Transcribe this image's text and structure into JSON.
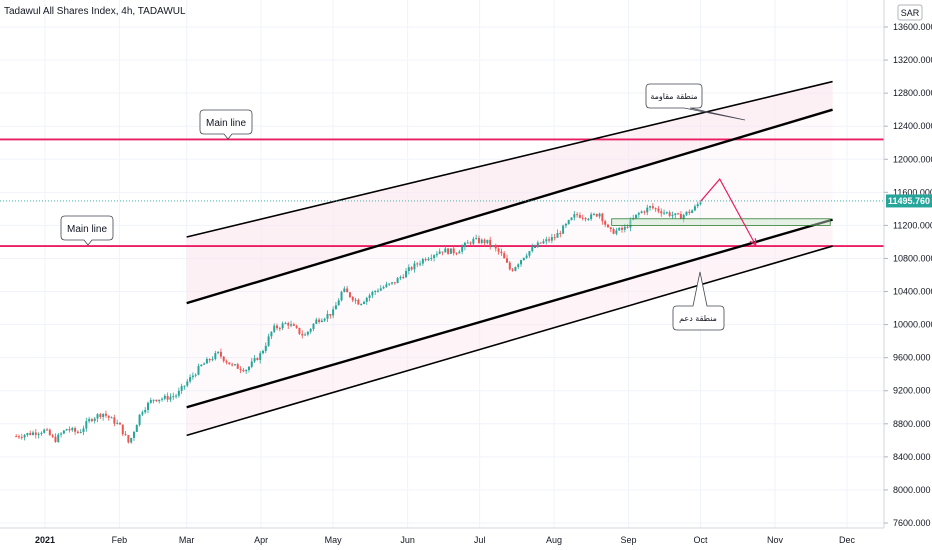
{
  "header": {
    "title": "Tadawul All Shares Index, 4h, TADAWUL",
    "currency": "SAR"
  },
  "price_label": {
    "text": "11495.760",
    "value": 11495.76,
    "color": "#26a69a"
  },
  "annotations": {
    "main_line_upper": "Main line",
    "main_line_lower": "Main line",
    "resistance_zone": "منطقة مقاومة",
    "support_zone": "منطقة دعم"
  },
  "colors": {
    "main_line": "#e91e63",
    "channel": "#000000",
    "channel_fill": "#fce4ec",
    "candle_up": "#26a69a",
    "candle_down": "#ef5350",
    "box": "#4caf50",
    "projection": "#e91e63"
  },
  "chart_data": {
    "type": "candlestick",
    "title": "Tadawul All Shares Index, 4h, TADAWUL",
    "y_unit": "SAR",
    "ylim": [
      7550,
      13900
    ],
    "y_ticks": [
      "13600.000",
      "13200.000",
      "12800.000",
      "12400.000",
      "12000.000",
      "11600.000",
      "11200.000",
      "10800.000",
      "10400.000",
      "10000.000",
      "9600.000",
      "9200.000",
      "8800.000",
      "8400.000",
      "8000.000",
      "7600.000"
    ],
    "x_ticks": [
      "2021",
      "Feb",
      "Mar",
      "Apr",
      "May",
      "Jun",
      "Jul",
      "Aug",
      "Sep",
      "Oct",
      "Nov",
      "Dec"
    ],
    "grid": true,
    "last_price": 11495.76,
    "main_lines": [
      12240,
      10950
    ],
    "price_path": [
      [
        "2020-12-20",
        8650
      ],
      [
        "2021-01-01",
        8720
      ],
      [
        "2021-01-05",
        8600
      ],
      [
        "2021-01-10",
        8740
      ],
      [
        "2021-01-15",
        8690
      ],
      [
        "2021-01-20",
        8860
      ],
      [
        "2021-01-25",
        8930
      ],
      [
        "2021-02-01",
        8780
      ],
      [
        "2021-02-05",
        8560
      ],
      [
        "2021-02-10",
        8950
      ],
      [
        "2021-02-15",
        9100
      ],
      [
        "2021-02-20",
        9110
      ],
      [
        "2021-02-25",
        9150
      ],
      [
        "2021-03-01",
        9300
      ],
      [
        "2021-03-07",
        9500
      ],
      [
        "2021-03-14",
        9650
      ],
      [
        "2021-03-20",
        9500
      ],
      [
        "2021-03-26",
        9460
      ],
      [
        "2021-04-01",
        9650
      ],
      [
        "2021-04-06",
        9950
      ],
      [
        "2021-04-12",
        10020
      ],
      [
        "2021-04-19",
        9860
      ],
      [
        "2021-04-24",
        10050
      ],
      [
        "2021-05-01",
        10150
      ],
      [
        "2021-05-05",
        10420
      ],
      [
        "2021-05-12",
        10260
      ],
      [
        "2021-05-19",
        10420
      ],
      [
        "2021-05-26",
        10500
      ],
      [
        "2021-06-01",
        10650
      ],
      [
        "2021-06-08",
        10800
      ],
      [
        "2021-06-15",
        10900
      ],
      [
        "2021-06-21",
        10880
      ],
      [
        "2021-06-28",
        11020
      ],
      [
        "2021-07-04",
        11000
      ],
      [
        "2021-07-10",
        10850
      ],
      [
        "2021-07-14",
        10650
      ],
      [
        "2021-07-20",
        10850
      ],
      [
        "2021-07-26",
        10980
      ],
      [
        "2021-08-01",
        11050
      ],
      [
        "2021-08-06",
        11200
      ],
      [
        "2021-08-10",
        11330
      ],
      [
        "2021-08-16",
        11300
      ],
      [
        "2021-08-20",
        11350
      ],
      [
        "2021-08-24",
        11120
      ],
      [
        "2021-08-30",
        11150
      ],
      [
        "2021-09-05",
        11340
      ],
      [
        "2021-09-10",
        11420
      ],
      [
        "2021-09-17",
        11350
      ],
      [
        "2021-09-22",
        11300
      ],
      [
        "2021-09-28",
        11390
      ],
      [
        "2021-10-01",
        11495.76
      ]
    ],
    "channels": [
      {
        "start": [
          "2021-03-01",
          11060
        ],
        "end": [
          "2021-11-25",
          12940
        ]
      },
      {
        "start": [
          "2021-03-01",
          10260
        ],
        "end": [
          "2021-11-25",
          12600
        ]
      },
      {
        "start": [
          "2021-03-01",
          9000
        ],
        "end": [
          "2021-11-25",
          11270
        ]
      },
      {
        "start": [
          "2021-03-01",
          8660
        ],
        "end": [
          "2021-11-25",
          10950
        ]
      }
    ],
    "consolidation_box": {
      "x": [
        "2021-08-25",
        "2021-11-24"
      ],
      "y": [
        11200,
        11280
      ]
    },
    "projection_path": [
      [
        "2021-10-01",
        11490
      ],
      [
        "2021-10-09",
        11760
      ],
      [
        "2021-10-24",
        10960
      ]
    ]
  }
}
